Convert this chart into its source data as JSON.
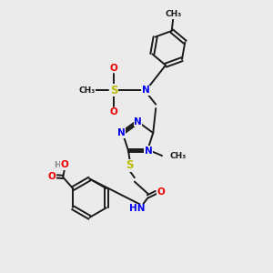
{
  "bg_color": "#ebebeb",
  "bond_color": "#1a1a1a",
  "N_color": "#0000ee",
  "O_color": "#ee0000",
  "S_color": "#bbbb00",
  "H_color": "#888888",
  "figsize": [
    3.0,
    3.0
  ],
  "dpi": 100,
  "xlim": [
    0,
    10
  ],
  "ylim": [
    0,
    10
  ],
  "lw": 1.4,
  "fs": 7.5
}
